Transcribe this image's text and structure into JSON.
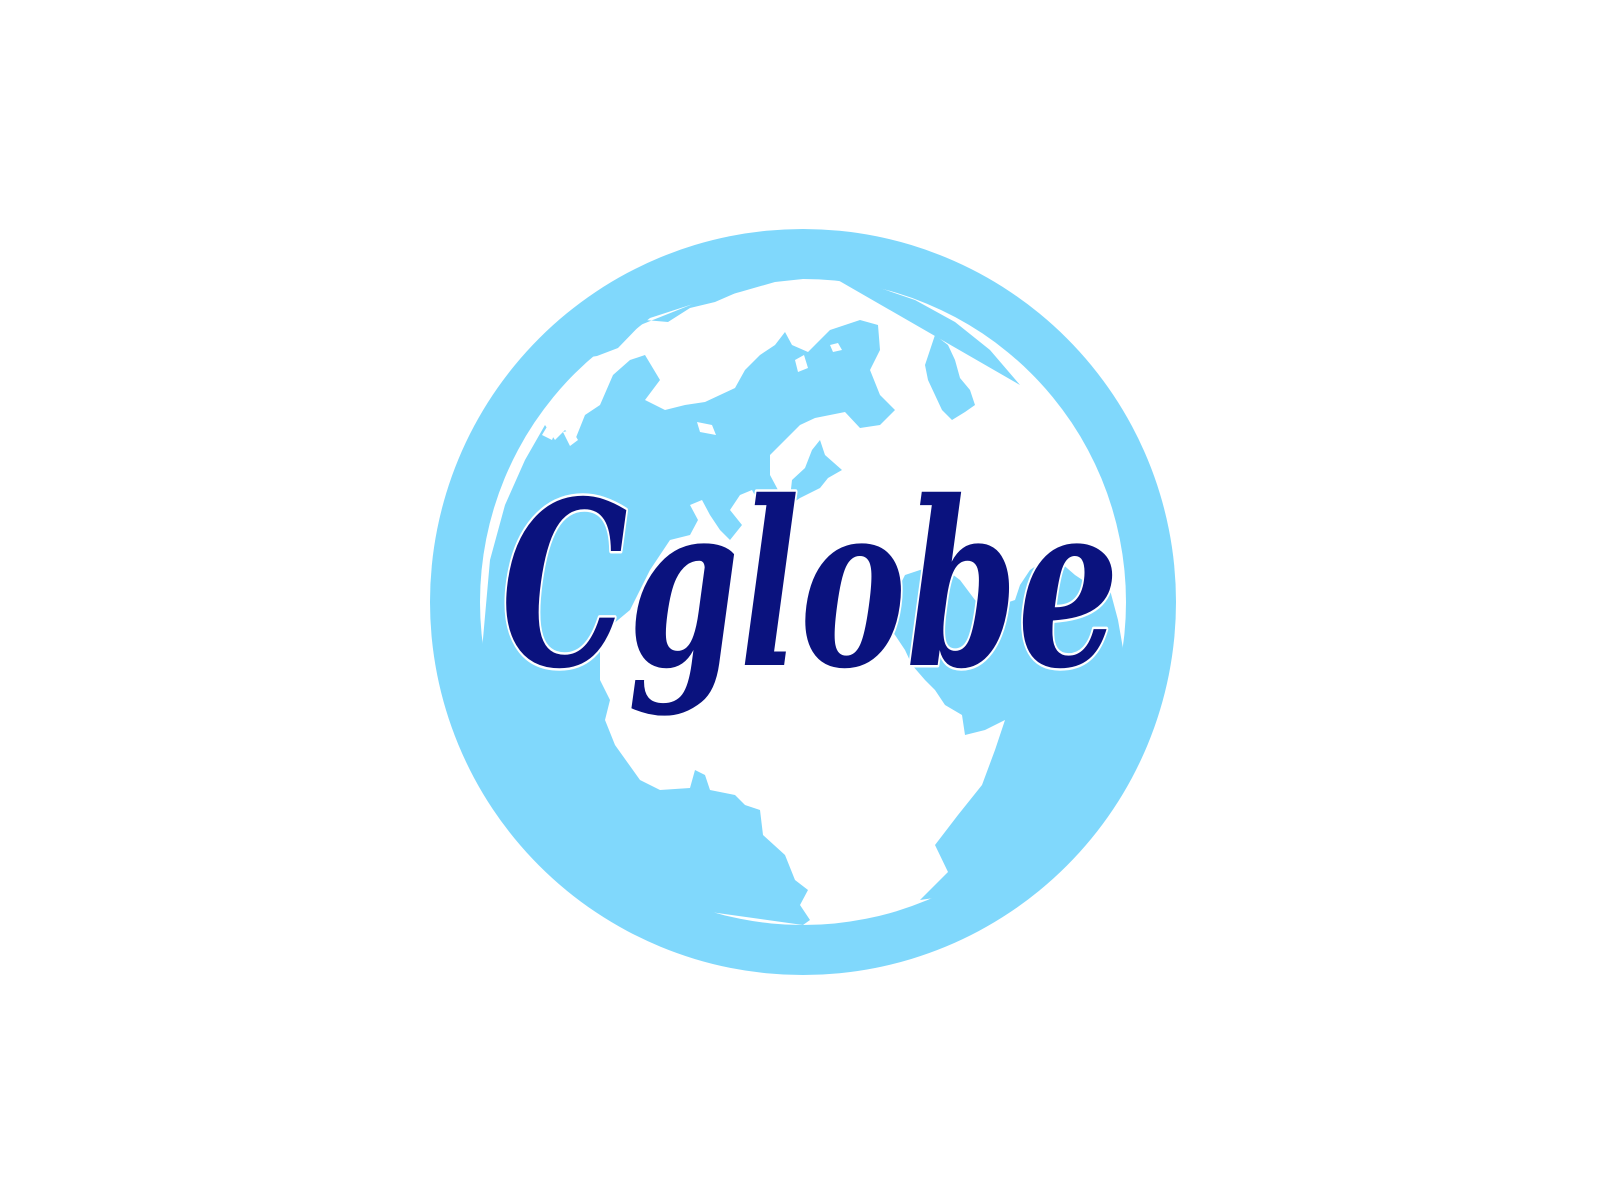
{
  "logo": {
    "wordmark": "Cglobe",
    "colors": {
      "background": "#ffffff",
      "globe_light_blue": "#80d8fc",
      "land_white": "#ffffff",
      "text_navy": "#0a127e",
      "text_outline": "#ffffff"
    },
    "icon": "globe-icon"
  }
}
